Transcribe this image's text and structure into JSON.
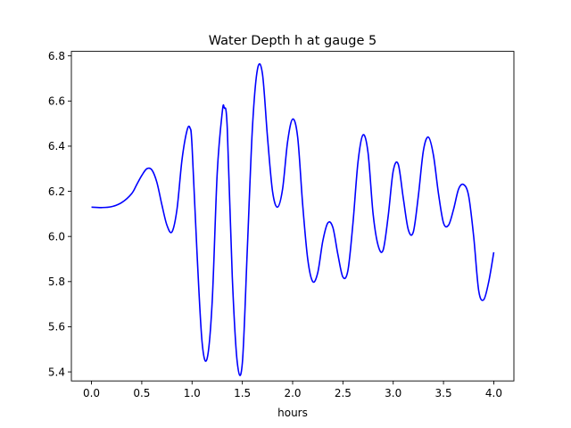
{
  "chart_data": {
    "type": "line",
    "title": "Water Depth h at gauge 5",
    "xlabel": "hours",
    "ylabel": "",
    "xlim": [
      -0.2,
      4.2
    ],
    "ylim": [
      5.36,
      6.82
    ],
    "xticks": [
      "0.0",
      "0.5",
      "1.0",
      "1.5",
      "2.0",
      "2.5",
      "3.0",
      "3.5",
      "4.0"
    ],
    "yticks": [
      "5.4",
      "5.6",
      "5.8",
      "6.0",
      "6.2",
      "6.4",
      "6.6",
      "6.8"
    ],
    "grid": false,
    "legend": "none",
    "series": [
      {
        "color": "#0000ff",
        "x": [
          0.0,
          0.1,
          0.2,
          0.3,
          0.4,
          0.45,
          0.5,
          0.55,
          0.6,
          0.65,
          0.7,
          0.75,
          0.8,
          0.85,
          0.9,
          0.95,
          0.98,
          1.0,
          1.05,
          1.1,
          1.15,
          1.2,
          1.25,
          1.3,
          1.32,
          1.35,
          1.4,
          1.45,
          1.5,
          1.55,
          1.6,
          1.65,
          1.7,
          1.75,
          1.8,
          1.85,
          1.9,
          1.95,
          2.0,
          2.05,
          2.1,
          2.15,
          2.2,
          2.25,
          2.3,
          2.35,
          2.4,
          2.45,
          2.5,
          2.55,
          2.6,
          2.65,
          2.7,
          2.75,
          2.8,
          2.85,
          2.9,
          2.95,
          3.0,
          3.05,
          3.1,
          3.15,
          3.2,
          3.25,
          3.3,
          3.35,
          3.4,
          3.45,
          3.5,
          3.55,
          3.6,
          3.65,
          3.7,
          3.75,
          3.8,
          3.85,
          3.9,
          3.95,
          4.0
        ],
        "y": [
          6.13,
          6.128,
          6.132,
          6.15,
          6.19,
          6.23,
          6.27,
          6.3,
          6.295,
          6.24,
          6.14,
          6.05,
          6.02,
          6.12,
          6.34,
          6.47,
          6.48,
          6.4,
          5.92,
          5.53,
          5.46,
          5.71,
          6.28,
          6.55,
          6.57,
          6.48,
          5.82,
          5.44,
          5.44,
          5.95,
          6.48,
          6.74,
          6.72,
          6.44,
          6.2,
          6.13,
          6.21,
          6.42,
          6.52,
          6.44,
          6.14,
          5.9,
          5.8,
          5.84,
          5.98,
          6.06,
          6.04,
          5.92,
          5.82,
          5.85,
          6.06,
          6.33,
          6.45,
          6.37,
          6.1,
          5.96,
          5.94,
          6.09,
          6.29,
          6.32,
          6.17,
          6.03,
          6.02,
          6.18,
          6.38,
          6.44,
          6.36,
          6.19,
          6.06,
          6.05,
          6.12,
          6.21,
          6.23,
          6.18,
          6.0,
          5.76,
          5.72,
          5.8,
          5.93
        ]
      }
    ]
  }
}
